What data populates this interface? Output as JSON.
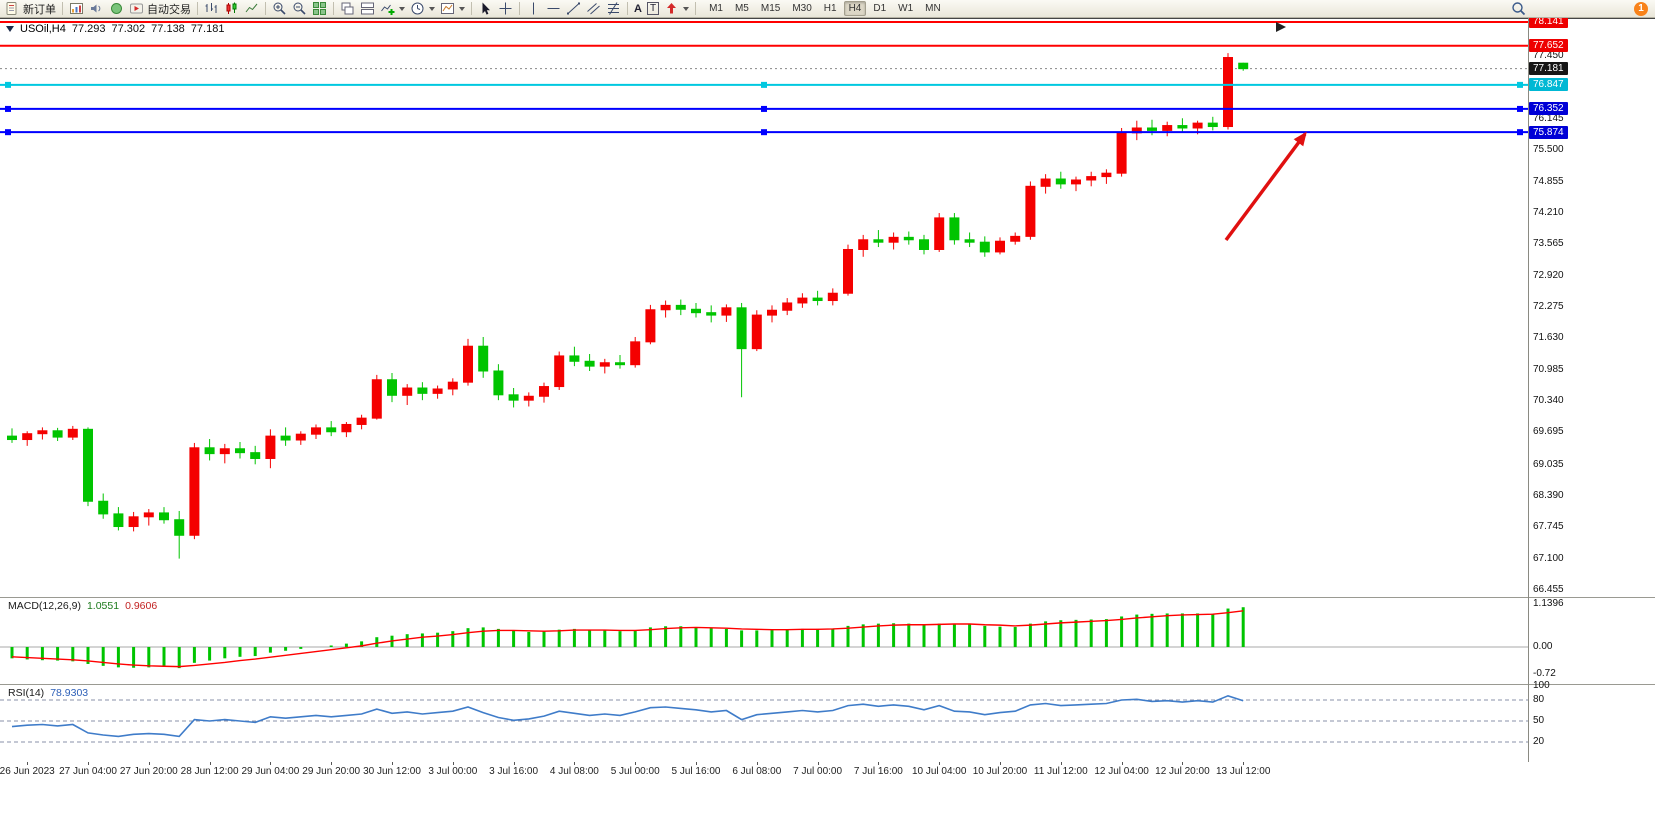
{
  "toolbar": {
    "new_order_label": "新订单",
    "autotrading_label": "自动交易",
    "text_tool_label": "A",
    "label_tool_label": "T",
    "timeframes": [
      "M1",
      "M5",
      "M15",
      "M30",
      "H1",
      "H4",
      "D1",
      "W1",
      "MN"
    ],
    "active_timeframe": "H4",
    "notification_count": "1",
    "icon_names": [
      "new-order-icon",
      "market-watch-icon",
      "alerts-icon",
      "community-icon",
      "autotrading-icon",
      "bars-chart-icon",
      "candles-chart-icon",
      "line-chart-icon",
      "zoom-in-icon",
      "zoom-out-icon",
      "tile-windows-icon",
      "cascade-windows-icon",
      "arrange-windows-icon",
      "indicators-icon",
      "periods-icon",
      "templates-icon",
      "cursor-icon",
      "crosshair-icon",
      "vline-icon",
      "hline-icon",
      "trendline-icon",
      "channel-icon",
      "fibonacci-icon",
      "text-icon",
      "label-icon",
      "arrow-shapes-icon",
      "search-icon",
      "notification-badge"
    ]
  },
  "chart": {
    "symbol_period": "USOil,H4",
    "open": "77.293",
    "high": "77.302",
    "low": "77.138",
    "close": "77.181"
  },
  "indicators": {
    "macd_label": "MACD(12,26,9)",
    "macd_value": "1.0551",
    "macd_signal": "0.9606",
    "rsi_label": "RSI(14)",
    "rsi_value": "78.9303"
  },
  "chart_data": {
    "type": "candlestick",
    "symbol": "USOil",
    "period": "H4",
    "colors": {
      "up": "#f40000",
      "down": "#00c400",
      "macd_hist": "#00c400",
      "macd_signal": "#ff0000",
      "rsi_line": "#3f7cc9",
      "rsi_level": "#8890aa",
      "arrow": "#e01010",
      "bid_line": "#888888"
    },
    "price_axis": {
      "range": [
        66.31,
        78.223
      ],
      "ticks": [
        77.45,
        76.145,
        75.5,
        74.855,
        74.21,
        73.565,
        72.92,
        72.275,
        71.63,
        70.985,
        70.34,
        69.695,
        69.035,
        68.39,
        67.745,
        67.1,
        66.455
      ],
      "badges": [
        {
          "price": 78.141,
          "text": "78.141",
          "bg": "#ee0000"
        },
        {
          "price": 77.652,
          "text": "77.652",
          "bg": "#ee0000"
        },
        {
          "price": 77.181,
          "text": "77.181",
          "bg": "#161616"
        },
        {
          "price": 76.847,
          "text": "76.847",
          "bg": "#00b8d4"
        },
        {
          "price": 76.352,
          "text": "76.352",
          "bg": "#0000d6"
        },
        {
          "price": 75.874,
          "text": "75.874",
          "bg": "#0000d6"
        }
      ]
    },
    "levels": [
      {
        "price": 78.141,
        "color": "#ff0000",
        "width": 2,
        "handles": false
      },
      {
        "price": 77.652,
        "color": "#ff0000",
        "width": 2,
        "handles": false
      },
      {
        "price": 76.847,
        "color": "#00c8e0",
        "width": 2,
        "handles": true
      },
      {
        "price": 76.352,
        "color": "#0000ff",
        "width": 2,
        "handles": true
      },
      {
        "price": 75.874,
        "color": "#0000ff",
        "width": 2,
        "handles": true
      }
    ],
    "bid_price": 77.181,
    "annotations": {
      "arrow": {
        "from": [
          1226,
          222
        ],
        "to": [
          1305,
          116
        ]
      }
    },
    "candles": [
      [
        69.62,
        69.78,
        69.48,
        69.55
      ],
      [
        69.55,
        69.72,
        69.42,
        69.67
      ],
      [
        69.67,
        69.8,
        69.55,
        69.73
      ],
      [
        69.73,
        69.79,
        69.52,
        69.6
      ],
      [
        69.6,
        69.83,
        69.54,
        69.76
      ],
      [
        69.76,
        69.8,
        68.18,
        68.28
      ],
      [
        68.28,
        68.44,
        67.92,
        68.02
      ],
      [
        68.02,
        68.16,
        67.68,
        67.76
      ],
      [
        67.76,
        68.06,
        67.66,
        67.96
      ],
      [
        67.96,
        68.12,
        67.78,
        68.04
      ],
      [
        68.04,
        68.16,
        67.82,
        67.9
      ],
      [
        67.9,
        68.08,
        67.1,
        67.58
      ],
      [
        67.58,
        69.48,
        67.5,
        69.38
      ],
      [
        69.38,
        69.56,
        69.12,
        69.26
      ],
      [
        69.26,
        69.46,
        69.06,
        69.36
      ],
      [
        69.36,
        69.5,
        69.16,
        69.28
      ],
      [
        69.28,
        69.42,
        69.04,
        69.16
      ],
      [
        69.16,
        69.76,
        68.96,
        69.62
      ],
      [
        69.62,
        69.8,
        69.42,
        69.54
      ],
      [
        69.54,
        69.72,
        69.44,
        69.66
      ],
      [
        69.66,
        69.86,
        69.56,
        69.79
      ],
      [
        69.79,
        69.93,
        69.62,
        69.71
      ],
      [
        69.71,
        69.91,
        69.6,
        69.86
      ],
      [
        69.86,
        70.06,
        69.76,
        69.99
      ],
      [
        69.99,
        70.88,
        69.96,
        70.78
      ],
      [
        70.78,
        70.92,
        70.32,
        70.46
      ],
      [
        70.46,
        70.69,
        70.26,
        70.61
      ],
      [
        70.61,
        70.73,
        70.36,
        70.5
      ],
      [
        70.5,
        70.66,
        70.39,
        70.59
      ],
      [
        70.59,
        70.81,
        70.46,
        70.73
      ],
      [
        70.73,
        71.62,
        70.66,
        71.47
      ],
      [
        71.47,
        71.66,
        70.82,
        70.96
      ],
      [
        70.96,
        71.1,
        70.36,
        70.47
      ],
      [
        70.47,
        70.61,
        70.21,
        70.36
      ],
      [
        70.36,
        70.52,
        70.23,
        70.44
      ],
      [
        70.44,
        70.72,
        70.31,
        70.64
      ],
      [
        70.64,
        71.36,
        70.57,
        71.27
      ],
      [
        71.27,
        71.46,
        71.06,
        71.16
      ],
      [
        71.16,
        71.31,
        70.96,
        71.06
      ],
      [
        71.06,
        71.21,
        70.91,
        71.13
      ],
      [
        71.13,
        71.29,
        71.01,
        71.09
      ],
      [
        71.09,
        71.66,
        71.03,
        71.56
      ],
      [
        71.56,
        72.32,
        71.51,
        72.22
      ],
      [
        72.22,
        72.41,
        72.06,
        72.31
      ],
      [
        72.31,
        72.43,
        72.11,
        72.23
      ],
      [
        72.23,
        72.36,
        72.06,
        72.16
      ],
      [
        72.16,
        72.31,
        71.96,
        72.11
      ],
      [
        72.11,
        72.33,
        71.97,
        72.26
      ],
      [
        72.26,
        72.36,
        70.42,
        71.42
      ],
      [
        71.42,
        72.21,
        71.37,
        72.11
      ],
      [
        72.11,
        72.31,
        71.96,
        72.21
      ],
      [
        72.21,
        72.46,
        72.11,
        72.36
      ],
      [
        72.36,
        72.56,
        72.26,
        72.46
      ],
      [
        72.46,
        72.61,
        72.31,
        72.41
      ],
      [
        72.41,
        72.66,
        72.31,
        72.56
      ],
      [
        72.56,
        73.56,
        72.51,
        73.46
      ],
      [
        73.46,
        73.76,
        73.31,
        73.66
      ],
      [
        73.66,
        73.86,
        73.51,
        73.61
      ],
      [
        73.61,
        73.81,
        73.46,
        73.71
      ],
      [
        73.71,
        73.83,
        73.56,
        73.66
      ],
      [
        73.66,
        73.76,
        73.36,
        73.46
      ],
      [
        73.46,
        74.21,
        73.41,
        74.11
      ],
      [
        74.11,
        74.21,
        73.56,
        73.66
      ],
      [
        73.66,
        73.81,
        73.51,
        73.61
      ],
      [
        73.61,
        73.73,
        73.31,
        73.41
      ],
      [
        73.41,
        73.71,
        73.36,
        73.63
      ],
      [
        73.63,
        73.81,
        73.56,
        73.73
      ],
      [
        73.73,
        74.86,
        73.66,
        74.76
      ],
      [
        74.76,
        75.01,
        74.61,
        74.91
      ],
      [
        74.91,
        75.06,
        74.71,
        74.81
      ],
      [
        74.81,
        74.96,
        74.66,
        74.89
      ],
      [
        74.89,
        75.06,
        74.76,
        74.96
      ],
      [
        74.96,
        75.11,
        74.81,
        75.03
      ],
      [
        75.03,
        75.96,
        74.96,
        75.86
      ],
      [
        75.86,
        76.11,
        75.71,
        75.96
      ],
      [
        75.96,
        76.13,
        75.81,
        75.91
      ],
      [
        75.91,
        76.09,
        75.79,
        76.01
      ],
      [
        76.01,
        76.16,
        75.86,
        75.96
      ],
      [
        75.96,
        76.11,
        75.83,
        76.06
      ],
      [
        76.06,
        76.19,
        75.91,
        75.99
      ],
      [
        75.99,
        77.5,
        75.93,
        77.41
      ],
      [
        77.293,
        77.302,
        77.138,
        77.181
      ]
    ],
    "macd": {
      "range": [
        -0.981,
        1.326
      ],
      "ticks": [
        {
          "v": 1.1396,
          "t": "1.1396"
        },
        {
          "v": 0,
          "t": "0.00"
        },
        {
          "v": -0.72,
          "t": "-0.72"
        }
      ],
      "histogram": [
        -0.3,
        -0.33,
        -0.35,
        -0.36,
        -0.38,
        -0.45,
        -0.5,
        -0.54,
        -0.55,
        -0.54,
        -0.53,
        -0.56,
        -0.42,
        -0.36,
        -0.3,
        -0.26,
        -0.24,
        -0.15,
        -0.1,
        -0.05,
        0.0,
        0.04,
        0.09,
        0.15,
        0.26,
        0.3,
        0.34,
        0.36,
        0.38,
        0.42,
        0.5,
        0.52,
        0.48,
        0.43,
        0.4,
        0.41,
        0.46,
        0.48,
        0.46,
        0.44,
        0.42,
        0.45,
        0.52,
        0.55,
        0.55,
        0.53,
        0.5,
        0.48,
        0.44,
        0.44,
        0.45,
        0.46,
        0.48,
        0.48,
        0.49,
        0.56,
        0.6,
        0.62,
        0.63,
        0.62,
        0.59,
        0.62,
        0.62,
        0.6,
        0.56,
        0.54,
        0.53,
        0.62,
        0.68,
        0.71,
        0.72,
        0.73,
        0.74,
        0.81,
        0.86,
        0.88,
        0.89,
        0.89,
        0.89,
        0.88,
        1.02,
        1.0551
      ],
      "signal": [
        -0.26,
        -0.28,
        -0.3,
        -0.32,
        -0.34,
        -0.37,
        -0.41,
        -0.45,
        -0.48,
        -0.5,
        -0.51,
        -0.52,
        -0.49,
        -0.45,
        -0.41,
        -0.36,
        -0.32,
        -0.27,
        -0.22,
        -0.17,
        -0.12,
        -0.07,
        -0.02,
        0.03,
        0.1,
        0.16,
        0.21,
        0.26,
        0.29,
        0.33,
        0.38,
        0.42,
        0.44,
        0.44,
        0.43,
        0.42,
        0.43,
        0.45,
        0.45,
        0.45,
        0.44,
        0.44,
        0.46,
        0.49,
        0.51,
        0.52,
        0.51,
        0.5,
        0.48,
        0.47,
        0.46,
        0.46,
        0.47,
        0.47,
        0.48,
        0.5,
        0.53,
        0.56,
        0.58,
        0.59,
        0.59,
        0.6,
        0.61,
        0.61,
        0.59,
        0.58,
        0.56,
        0.58,
        0.61,
        0.64,
        0.66,
        0.68,
        0.7,
        0.73,
        0.77,
        0.8,
        0.83,
        0.85,
        0.86,
        0.87,
        0.91,
        0.9606
      ]
    },
    "rsi": {
      "range": [
        -8.57,
        102.86
      ],
      "levels": [
        80,
        50,
        20
      ],
      "ticks": [
        {
          "v": 100,
          "t": "100"
        },
        {
          "v": 80,
          "t": "80"
        },
        {
          "v": 50,
          "t": "50"
        },
        {
          "v": 20,
          "t": "20"
        }
      ],
      "values": [
        42,
        44,
        45,
        43,
        45,
        33,
        30,
        28,
        31,
        32,
        31,
        28,
        52,
        50,
        52,
        50,
        48,
        56,
        54,
        56,
        58,
        56,
        58,
        60,
        67,
        61,
        63,
        60,
        62,
        64,
        70,
        62,
        55,
        51,
        53,
        57,
        64,
        61,
        58,
        60,
        58,
        63,
        69,
        70,
        68,
        66,
        63,
        65,
        52,
        59,
        61,
        63,
        65,
        63,
        65,
        72,
        74,
        71,
        73,
        71,
        66,
        72,
        64,
        63,
        59,
        62,
        64,
        73,
        75,
        72,
        73,
        74,
        75,
        80,
        81,
        78,
        79,
        77,
        79,
        77,
        86,
        78.93
      ]
    },
    "time_labels": [
      {
        "i": 1,
        "t": "26 Jun 2023"
      },
      {
        "i": 5,
        "t": "27 Jun 04:00"
      },
      {
        "i": 9,
        "t": "27 Jun 20:00"
      },
      {
        "i": 13,
        "t": "28 Jun 12:00"
      },
      {
        "i": 17,
        "t": "29 Jun 04:00"
      },
      {
        "i": 21,
        "t": "29 Jun 20:00"
      },
      {
        "i": 25,
        "t": "30 Jun 12:00"
      },
      {
        "i": 29,
        "t": "3 Jul 00:00"
      },
      {
        "i": 33,
        "t": "3 Jul 16:00"
      },
      {
        "i": 37,
        "t": "4 Jul 08:00"
      },
      {
        "i": 41,
        "t": "5 Jul 00:00"
      },
      {
        "i": 45,
        "t": "5 Jul 16:00"
      },
      {
        "i": 49,
        "t": "6 Jul 08:00"
      },
      {
        "i": 53,
        "t": "7 Jul 00:00"
      },
      {
        "i": 57,
        "t": "7 Jul 16:00"
      },
      {
        "i": 61,
        "t": "10 Jul 04:00"
      },
      {
        "i": 65,
        "t": "10 Jul 20:00"
      },
      {
        "i": 69,
        "t": "11 Jul 12:00"
      },
      {
        "i": 73,
        "t": "12 Jul 04:00"
      },
      {
        "i": 77,
        "t": "12 Jul 20:00"
      },
      {
        "i": 81,
        "t": "13 Jul 12:00"
      }
    ]
  }
}
